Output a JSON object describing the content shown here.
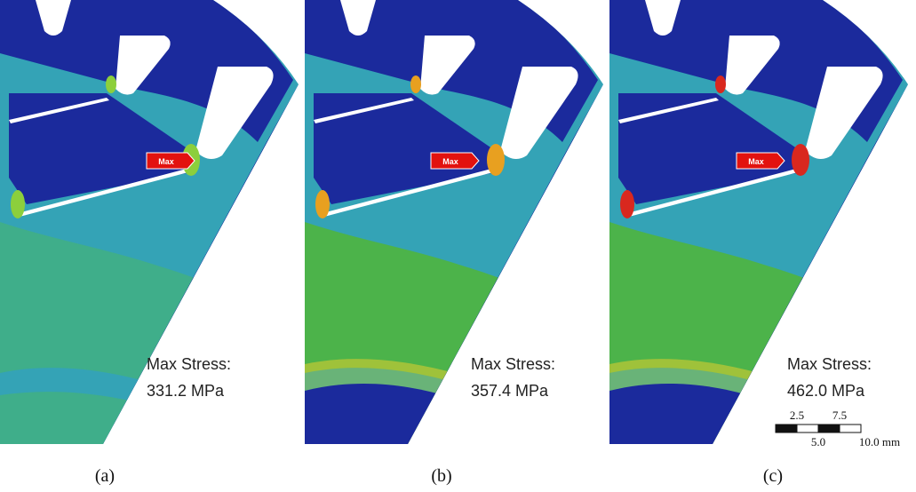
{
  "panels": [
    {
      "marker": "Max",
      "stress_label": "Max Stress:",
      "stress_value": "331.2 MPa",
      "caption": "(a)"
    },
    {
      "marker": "Max",
      "stress_label": "Max Stress:",
      "stress_value": "357.4 MPa",
      "caption": "(b)"
    },
    {
      "marker": "Max",
      "stress_label": "Max Stress:",
      "stress_value": "462.0 MPa",
      "caption": "(c)"
    }
  ],
  "scale_bar": {
    "top_labels": [
      "2.5",
      "7.5"
    ],
    "bottom_labels": [
      "5.0",
      "10.0 mm"
    ]
  }
}
